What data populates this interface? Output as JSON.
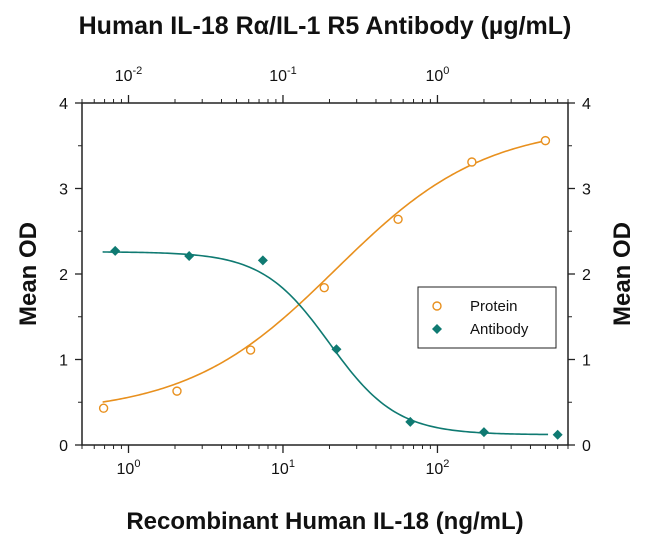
{
  "chart_data": {
    "type": "scatter",
    "title": "Human IL-18 Rα/IL-1 R5 Antibody (µg/mL)",
    "xlabel": "Recombinant Human IL-18 (ng/mL)",
    "ylabel": "Mean OD",
    "ylabel_right": "Mean OD",
    "x_scale": "log",
    "xlim": [
      0.5,
      700
    ],
    "ylim": [
      0,
      4
    ],
    "yticks": [
      0,
      1,
      2,
      3,
      4
    ],
    "xticks": [
      {
        "value": 1,
        "base": "10",
        "exp": "0"
      },
      {
        "value": 10,
        "base": "10",
        "exp": "1"
      },
      {
        "value": 100,
        "base": "10",
        "exp": "2"
      }
    ],
    "top_axis": {
      "x_scale": "log",
      "ticks": [
        {
          "value": 0.01,
          "base": "10",
          "exp": "-2"
        },
        {
          "value": 0.1,
          "base": "10",
          "exp": "-1"
        },
        {
          "value": 1,
          "base": "10",
          "exp": "0"
        }
      ]
    },
    "legend": {
      "position": "right",
      "entries": [
        "Protein",
        "Antibody"
      ]
    },
    "grid": false,
    "series": [
      {
        "name": "Protein",
        "color": "#e8901e",
        "marker": "open-circle",
        "x": [
          0.69,
          2.06,
          6.17,
          18.5,
          55.6,
          167,
          500
        ],
        "y": [
          0.43,
          0.63,
          1.11,
          1.84,
          2.64,
          3.31,
          3.56
        ]
      },
      {
        "name": "Antibody",
        "color": "#0f7a72",
        "marker": "filled-diamond",
        "x_top": [
          0.0082,
          0.0247,
          0.0741,
          0.222,
          0.667,
          2.0,
          6.0
        ],
        "y": [
          2.27,
          2.21,
          2.16,
          1.12,
          0.27,
          0.15,
          0.12
        ]
      }
    ]
  }
}
